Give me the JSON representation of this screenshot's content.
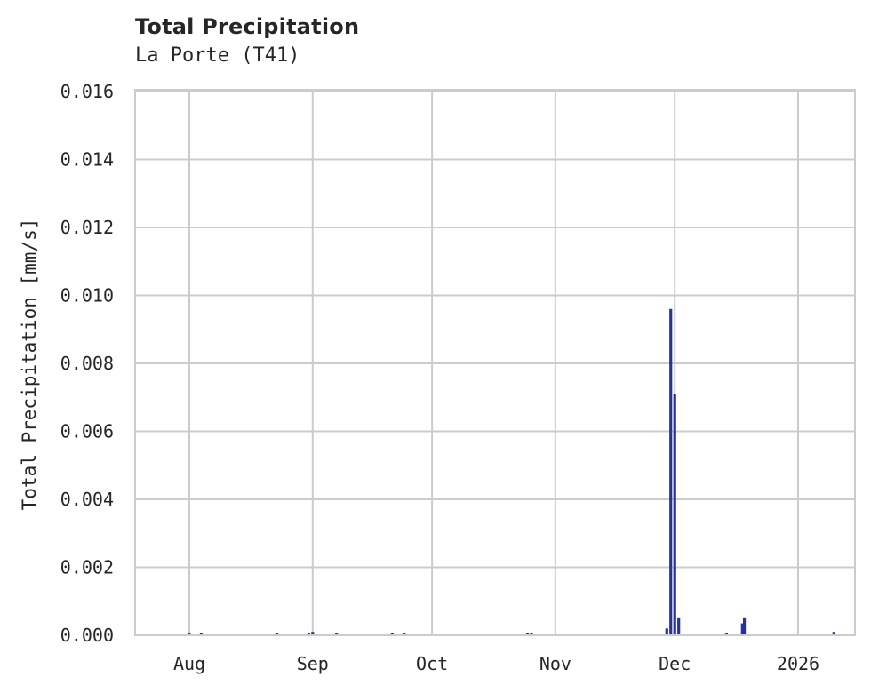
{
  "header": {
    "title": "Total Precipitation",
    "subtitle": "La Porte (T41)"
  },
  "colors": {
    "bar": "#26339a",
    "grid": "#cccccc",
    "frame": "#cccccc",
    "text": "#262626"
  },
  "chart_data": {
    "type": "bar",
    "title": "Total Precipitation",
    "subtitle": "La Porte (T41)",
    "xlabel": "",
    "ylabel": "Total Precipitation [mm/s]",
    "ylim": [
      0,
      0.016
    ],
    "yticks": [
      "0.000",
      "0.002",
      "0.004",
      "0.006",
      "0.008",
      "0.010",
      "0.012",
      "0.014",
      "0.016"
    ],
    "xlim": [
      "2025-07-18",
      "2026-01-15"
    ],
    "xticks": [
      {
        "label": "Aug",
        "date": "2025-08-01"
      },
      {
        "label": "Sep",
        "date": "2025-09-01"
      },
      {
        "label": "Oct",
        "date": "2025-10-01"
      },
      {
        "label": "Nov",
        "date": "2025-11-01"
      },
      {
        "label": "Dec",
        "date": "2025-12-01"
      },
      {
        "label": "2026",
        "date": "2026-01-01"
      }
    ],
    "grid": true,
    "legend": "none",
    "series": [
      {
        "name": "Total Precipitation",
        "points": [
          {
            "date": "2025-08-01",
            "value": 5e-05
          },
          {
            "date": "2025-08-04",
            "value": 5e-05
          },
          {
            "date": "2025-08-23",
            "value": 5e-05
          },
          {
            "date": "2025-08-31",
            "value": 5e-05
          },
          {
            "date": "2025-09-01",
            "value": 0.0001
          },
          {
            "date": "2025-09-07",
            "value": 5e-05
          },
          {
            "date": "2025-09-21",
            "value": 5e-05
          },
          {
            "date": "2025-09-24",
            "value": 5e-05
          },
          {
            "date": "2025-10-25",
            "value": 5e-05
          },
          {
            "date": "2025-10-26",
            "value": 5e-05
          },
          {
            "date": "2025-11-29",
            "value": 0.0002
          },
          {
            "date": "2025-11-30",
            "value": 0.0096
          },
          {
            "date": "2025-12-01",
            "value": 0.0071
          },
          {
            "date": "2025-12-02",
            "value": 0.0005
          },
          {
            "date": "2025-12-14",
            "value": 5e-05
          },
          {
            "date": "2025-12-18",
            "value": 0.00035
          },
          {
            "date": "2025-12-18T12",
            "value": 0.0005
          },
          {
            "date": "2026-01-10",
            "value": 0.0001
          }
        ]
      }
    ]
  }
}
